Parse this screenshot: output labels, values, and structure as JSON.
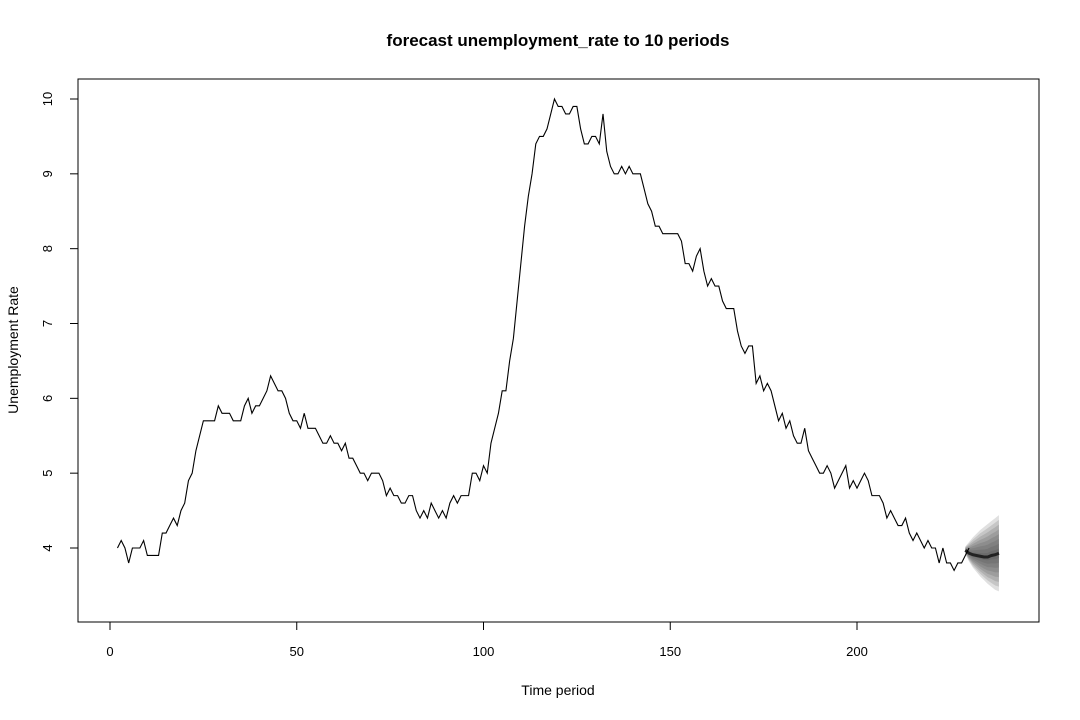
{
  "chart_data": {
    "type": "line",
    "title": "forecast unemployment_rate to 10 periods",
    "xlabel": "Time period",
    "ylabel": "Unemployment Rate",
    "xlim": [
      0,
      235
    ],
    "ylim": [
      3.0,
      10.3
    ],
    "x_ticks": [
      0,
      50,
      100,
      150,
      200
    ],
    "y_ticks": [
      4,
      5,
      6,
      7,
      8,
      9,
      10
    ],
    "grid": false,
    "series": [
      {
        "start_x": 2,
        "values": [
          4.0,
          4.1,
          4.0,
          3.8,
          4.0,
          4.0,
          4.0,
          4.1,
          3.9,
          3.9,
          3.9,
          3.9,
          4.2,
          4.2,
          4.3,
          4.4,
          4.3,
          4.5,
          4.6,
          4.9,
          5.0,
          5.3,
          5.5,
          5.7,
          5.7,
          5.7,
          5.7,
          5.9,
          5.8,
          5.8,
          5.8,
          5.7,
          5.7,
          5.7,
          5.9,
          6.0,
          5.8,
          5.9,
          5.9,
          6.0,
          6.1,
          6.3,
          6.2,
          6.1,
          6.1,
          6.0,
          5.8,
          5.7,
          5.7,
          5.6,
          5.8,
          5.6,
          5.6,
          5.6,
          5.5,
          5.4,
          5.4,
          5.5,
          5.4,
          5.4,
          5.3,
          5.4,
          5.2,
          5.2,
          5.1,
          5.0,
          5.0,
          4.9,
          5.0,
          5.0,
          5.0,
          4.9,
          4.7,
          4.8,
          4.7,
          4.7,
          4.6,
          4.6,
          4.7,
          4.7,
          4.5,
          4.4,
          4.5,
          4.4,
          4.6,
          4.5,
          4.4,
          4.5,
          4.4,
          4.6,
          4.7,
          4.6,
          4.7,
          4.7,
          4.7,
          5.0,
          5.0,
          4.9,
          5.1,
          5.0,
          5.4,
          5.6,
          5.8,
          6.1,
          6.1,
          6.5,
          6.8,
          7.3,
          7.8,
          8.3,
          8.7,
          9.0,
          9.4,
          9.5,
          9.5,
          9.6,
          9.8,
          10.0,
          9.9,
          9.9,
          9.8,
          9.8,
          9.9,
          9.9,
          9.6,
          9.4,
          9.4,
          9.5,
          9.5,
          9.4,
          9.8,
          9.3,
          9.1,
          9.0,
          9.0,
          9.1,
          9.0,
          9.1,
          9.0,
          9.0,
          9.0,
          8.8,
          8.6,
          8.5,
          8.3,
          8.3,
          8.2,
          8.2,
          8.2,
          8.2,
          8.2,
          8.1,
          7.8,
          7.8,
          7.7,
          7.9,
          8.0,
          7.7,
          7.5,
          7.6,
          7.5,
          7.5,
          7.3,
          7.2,
          7.2,
          7.2,
          6.9,
          6.7,
          6.6,
          6.7,
          6.7,
          6.2,
          6.3,
          6.1,
          6.2,
          6.1,
          5.9,
          5.7,
          5.8,
          5.6,
          5.7,
          5.5,
          5.4,
          5.4,
          5.6,
          5.3,
          5.2,
          5.1,
          5.0,
          5.0,
          5.1,
          5.0,
          4.8,
          4.9,
          5.0,
          5.1,
          4.8,
          4.9,
          4.8,
          4.9,
          5.0,
          4.9,
          4.7,
          4.7,
          4.7,
          4.6,
          4.4,
          4.5,
          4.4,
          4.3,
          4.3,
          4.4,
          4.2,
          4.1,
          4.2,
          4.1,
          4.0,
          4.1,
          4.0,
          4.0,
          3.8,
          4.0,
          3.8,
          3.8,
          3.7,
          3.8,
          3.8,
          3.9,
          4.0
        ]
      }
    ],
    "forecast": {
      "x": [
        229,
        230,
        231,
        232,
        233,
        234,
        235,
        236,
        237,
        238
      ],
      "mean": [
        3.97,
        3.93,
        3.91,
        3.9,
        3.89,
        3.88,
        3.88,
        3.9,
        3.91,
        3.93
      ],
      "upper": [
        4.02,
        4.08,
        4.14,
        4.19,
        4.24,
        4.28,
        4.32,
        4.36,
        4.4,
        4.44
      ],
      "lower": [
        3.92,
        3.82,
        3.74,
        3.68,
        3.62,
        3.57,
        3.52,
        3.48,
        3.44,
        3.42
      ],
      "fan_color": "#404040"
    },
    "line_color": "#000000"
  }
}
